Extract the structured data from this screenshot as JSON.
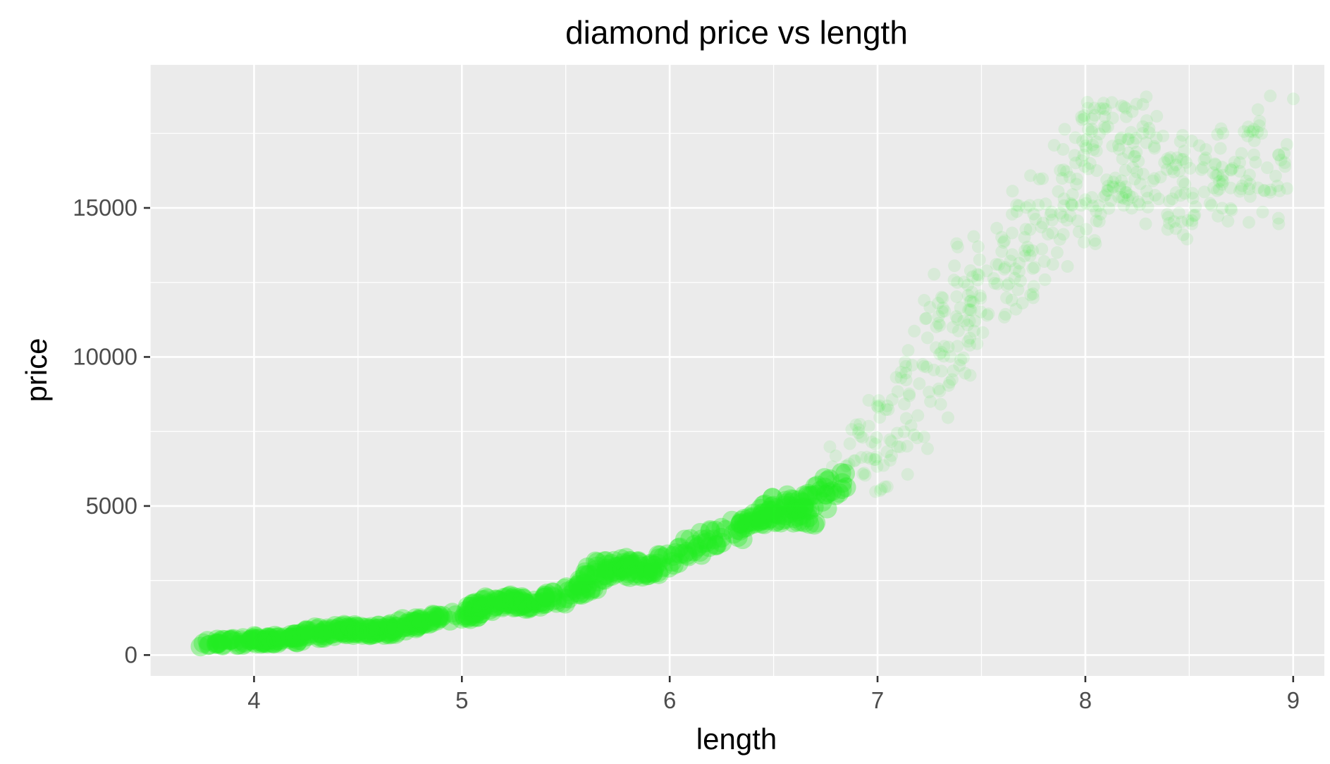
{
  "chart_data": {
    "type": "scatter",
    "title": "diamond price vs length",
    "xlabel": "length",
    "ylabel": "price",
    "xlim": [
      3.5,
      9.15
    ],
    "ylim": [
      -700,
      19800
    ],
    "x_ticks": [
      4,
      5,
      6,
      7,
      8,
      9
    ],
    "y_ticks": [
      0,
      5000,
      10000,
      15000
    ],
    "x_tick_labels": [
      "4",
      "5",
      "6",
      "7",
      "8",
      "9"
    ],
    "y_tick_labels": [
      "0",
      "5000",
      "10000",
      "15000"
    ],
    "grid": true,
    "legend": "none",
    "point_color": "#22ee22",
    "panel_color": "#ebebeb",
    "points": [
      [
        3.8,
        400
      ],
      [
        3.9,
        450
      ],
      [
        4.0,
        480
      ],
      [
        4.05,
        500
      ],
      [
        4.1,
        520
      ],
      [
        4.15,
        560
      ],
      [
        4.2,
        600
      ],
      [
        4.3,
        700
      ],
      [
        4.35,
        780
      ],
      [
        4.4,
        850
      ],
      [
        4.45,
        880
      ],
      [
        4.5,
        800
      ],
      [
        4.55,
        760
      ],
      [
        4.6,
        800
      ],
      [
        4.65,
        850
      ],
      [
        4.7,
        900
      ],
      [
        4.75,
        1050
      ],
      [
        4.8,
        1150
      ],
      [
        4.9,
        1200
      ],
      [
        5.0,
        1350
      ],
      [
        5.05,
        1450
      ],
      [
        5.1,
        1650
      ],
      [
        5.15,
        1750
      ],
      [
        5.2,
        1800
      ],
      [
        5.25,
        1750
      ],
      [
        5.3,
        1700
      ],
      [
        5.35,
        1800
      ],
      [
        5.45,
        1900
      ],
      [
        5.55,
        2100
      ],
      [
        5.6,
        2300
      ],
      [
        5.65,
        2700
      ],
      [
        5.7,
        2900
      ],
      [
        5.75,
        3000
      ],
      [
        5.8,
        2900
      ],
      [
        5.85,
        2800
      ],
      [
        5.9,
        2900
      ],
      [
        6.0,
        3200
      ],
      [
        6.1,
        3600
      ],
      [
        6.2,
        3900
      ],
      [
        6.3,
        4200
      ],
      [
        6.4,
        4500
      ],
      [
        6.45,
        4700
      ],
      [
        6.5,
        4800
      ],
      [
        6.55,
        5000
      ],
      [
        6.6,
        4900
      ],
      [
        6.65,
        4700
      ],
      [
        6.7,
        5300
      ],
      [
        6.8,
        5700
      ],
      [
        6.9,
        6200
      ],
      [
        7.0,
        6900
      ],
      [
        7.1,
        7800
      ],
      [
        7.2,
        8800
      ],
      [
        7.3,
        10200
      ],
      [
        7.35,
        11200
      ],
      [
        7.4,
        12000
      ],
      [
        7.5,
        12500
      ],
      [
        7.6,
        13000
      ],
      [
        7.7,
        13800
      ],
      [
        7.8,
        14500
      ],
      [
        7.9,
        15200
      ],
      [
        8.0,
        16000
      ],
      [
        8.05,
        16500
      ],
      [
        8.1,
        16800
      ],
      [
        8.15,
        17000
      ],
      [
        8.2,
        16600
      ],
      [
        8.3,
        16200
      ],
      [
        8.4,
        16000
      ],
      [
        8.5,
        15500
      ],
      [
        8.6,
        15800
      ],
      [
        8.7,
        16500
      ],
      [
        8.8,
        16200
      ],
      [
        8.85,
        17200
      ]
    ]
  }
}
